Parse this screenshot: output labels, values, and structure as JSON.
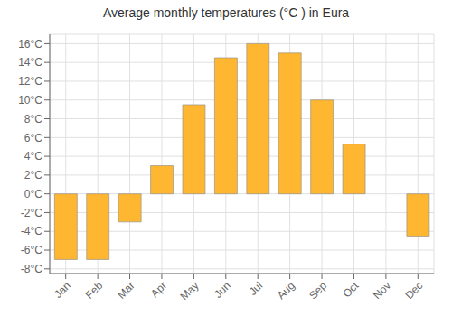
{
  "chart_data": {
    "type": "bar",
    "title": "Average monthly temperatures (°C ) in Eura",
    "categories": [
      "Jan",
      "Feb",
      "Mar",
      "Apr",
      "May",
      "Jun",
      "Jul",
      "Aug",
      "Sep",
      "Oct",
      "Nov",
      "Dec"
    ],
    "values": [
      -7.0,
      -7.0,
      -3.0,
      3.0,
      9.5,
      14.5,
      16.0,
      15.0,
      10.0,
      5.3,
      0.0,
      -4.5
    ],
    "color": "#FFB732",
    "ylim": [
      -8.5,
      17.0
    ],
    "yticks": [
      {
        "value": -8,
        "label": "-8°C"
      },
      {
        "value": -6,
        "label": "-6°C"
      },
      {
        "value": -4,
        "label": "-4°C"
      },
      {
        "value": -2,
        "label": "-2°C"
      },
      {
        "value": 0,
        "label": "0°C"
      },
      {
        "value": 2,
        "label": "2°C"
      },
      {
        "value": 4,
        "label": "4°C"
      },
      {
        "value": 6,
        "label": "6°C"
      },
      {
        "value": 8,
        "label": "8°C"
      },
      {
        "value": 10,
        "label": "10°C"
      },
      {
        "value": 12,
        "label": "12°C"
      },
      {
        "value": 14,
        "label": "14°C"
      },
      {
        "value": 16,
        "label": "16°C"
      }
    ],
    "grid": true
  }
}
